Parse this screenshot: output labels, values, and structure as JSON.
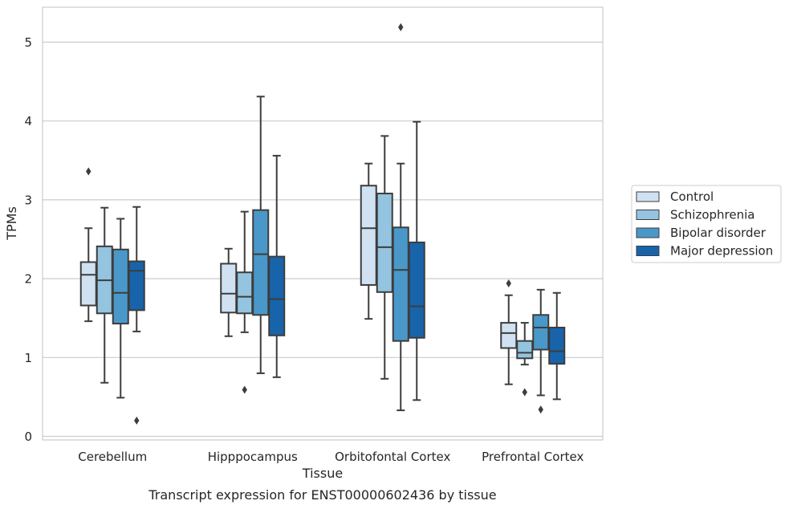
{
  "chart_data": {
    "type": "box",
    "title": "Transcript expression for ENST00000602436 by tissue",
    "xlabel": "Tissue",
    "ylabel": "TPMs",
    "ylim": [
      -0.05,
      5.45
    ],
    "yticks": [
      0,
      1,
      2,
      3,
      4,
      5
    ],
    "grid": true,
    "legend_position": "right",
    "categories": [
      "Cerebellum",
      "Hipppocampus",
      "Orbitofontal Cortex",
      "Prefrontal Cortex"
    ],
    "series": [
      {
        "name": "Control",
        "color": "#d0e1f2",
        "boxes": [
          {
            "whisker_low": 1.46,
            "q1": 1.66,
            "median": 2.05,
            "q3": 2.21,
            "whisker_high": 2.64,
            "outliers": [
              3.36
            ]
          },
          {
            "whisker_low": 1.27,
            "q1": 1.57,
            "median": 1.81,
            "q3": 2.19,
            "whisker_high": 2.38,
            "outliers": []
          },
          {
            "whisker_low": 1.49,
            "q1": 1.92,
            "median": 2.64,
            "q3": 3.18,
            "whisker_high": 3.46,
            "outliers": []
          },
          {
            "whisker_low": 0.66,
            "q1": 1.12,
            "median": 1.31,
            "q3": 1.44,
            "whisker_high": 1.79,
            "outliers": [
              1.94
            ]
          }
        ]
      },
      {
        "name": "Schizophrenia",
        "color": "#94c4df",
        "boxes": [
          {
            "whisker_low": 0.68,
            "q1": 1.56,
            "median": 1.98,
            "q3": 2.41,
            "whisker_high": 2.9,
            "outliers": []
          },
          {
            "whisker_low": 1.32,
            "q1": 1.56,
            "median": 1.77,
            "q3": 2.08,
            "whisker_high": 2.85,
            "outliers": [
              0.59
            ]
          },
          {
            "whisker_low": 0.73,
            "q1": 1.83,
            "median": 2.4,
            "q3": 3.08,
            "whisker_high": 3.81,
            "outliers": []
          },
          {
            "whisker_low": 0.91,
            "q1": 0.99,
            "median": 1.06,
            "q3": 1.21,
            "whisker_high": 1.44,
            "outliers": [
              0.56
            ]
          }
        ]
      },
      {
        "name": "Bipolar disorder",
        "color": "#4a98c9",
        "boxes": [
          {
            "whisker_low": 0.49,
            "q1": 1.43,
            "median": 1.82,
            "q3": 2.37,
            "whisker_high": 2.76,
            "outliers": []
          },
          {
            "whisker_low": 0.8,
            "q1": 1.54,
            "median": 2.31,
            "q3": 2.87,
            "whisker_high": 4.31,
            "outliers": []
          },
          {
            "whisker_low": 0.33,
            "q1": 1.21,
            "median": 2.11,
            "q3": 2.65,
            "whisker_high": 3.46,
            "outliers": [
              5.19
            ]
          },
          {
            "whisker_low": 0.52,
            "q1": 1.1,
            "median": 1.38,
            "q3": 1.54,
            "whisker_high": 1.86,
            "outliers": [
              0.34
            ]
          }
        ]
      },
      {
        "name": "Major depression",
        "color": "#1764ab",
        "boxes": [
          {
            "whisker_low": 1.33,
            "q1": 1.6,
            "median": 2.1,
            "q3": 2.22,
            "whisker_high": 2.91,
            "outliers": [
              0.2
            ]
          },
          {
            "whisker_low": 0.75,
            "q1": 1.28,
            "median": 1.74,
            "q3": 2.28,
            "whisker_high": 3.56,
            "outliers": []
          },
          {
            "whisker_low": 0.46,
            "q1": 1.25,
            "median": 1.65,
            "q3": 2.46,
            "whisker_high": 3.99,
            "outliers": []
          },
          {
            "whisker_low": 0.47,
            "q1": 0.92,
            "median": 1.08,
            "q3": 1.38,
            "whisker_high": 1.82,
            "outliers": []
          }
        ]
      }
    ]
  }
}
